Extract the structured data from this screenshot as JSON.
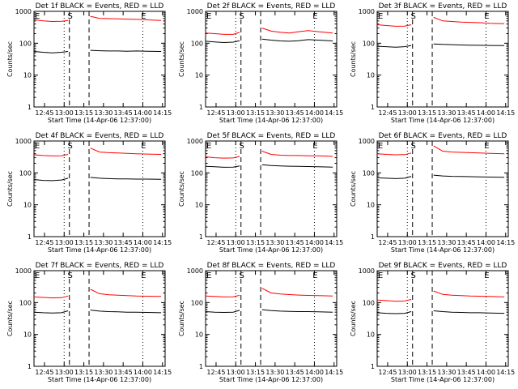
{
  "chart_data": [
    {
      "type": "line",
      "title": "Det 1f BLACK = Events, RED = LLD",
      "xlabel": "Start Time (14-Apr-06 12:37:00)",
      "ylabel": "Counts/sec",
      "y_scale": "log",
      "ylim": [
        1,
        1000
      ],
      "x_tick_labels": [
        "12:45",
        "13:00",
        "13:15",
        "13:30",
        "13:45",
        "14:00",
        "14:15"
      ],
      "y_tick_labels": [
        "1",
        "10",
        "100",
        "1000"
      ],
      "markers": [
        {
          "label": "E",
          "x": "12:37"
        },
        {
          "label": "S",
          "x": "13:04"
        },
        {
          "label": "E",
          "x": "14:00"
        }
      ],
      "dashed_lines": [
        "13:04",
        "13:19"
      ],
      "series": [
        {
          "color": "#ff0000",
          "values": [
            550,
            500,
            480,
            490,
            520,
            "gap",
            700,
            600,
            590,
            580,
            570,
            560,
            540,
            520
          ]
        },
        {
          "color": "#000000",
          "values": [
            55,
            52,
            50,
            52,
            55,
            "gap",
            60,
            58,
            57,
            57,
            56,
            57,
            56,
            55
          ]
        }
      ]
    },
    {
      "type": "line",
      "title": "Det 2f BLACK = Events, RED = LLD",
      "xlabel": "Start Time (14-Apr-06 12:37:00)",
      "ylabel": "Counts/sec",
      "y_scale": "log",
      "ylim": [
        1,
        1000
      ],
      "x_tick_labels": [
        "12:45",
        "13:00",
        "13:15",
        "13:30",
        "13:45",
        "14:00",
        "14:15"
      ],
      "y_tick_labels": [
        "1",
        "10",
        "100",
        "1000"
      ],
      "markers": [
        {
          "label": "E",
          "x": "12:37"
        },
        {
          "label": "S",
          "x": "13:04"
        },
        {
          "label": "E",
          "x": "14:00"
        }
      ],
      "dashed_lines": [
        "13:04",
        "13:19"
      ],
      "series": [
        {
          "color": "#ff0000",
          "values": [
            210,
            200,
            190,
            190,
            220,
            "gap",
            300,
            240,
            220,
            210,
            230,
            250,
            230,
            210
          ]
        },
        {
          "color": "#000000",
          "values": [
            115,
            110,
            105,
            108,
            120,
            "gap",
            135,
            125,
            118,
            115,
            120,
            130,
            125,
            118
          ]
        }
      ]
    },
    {
      "type": "line",
      "title": "Det 3f BLACK = Events, RED = LLD",
      "xlabel": "Start Time (14-Apr-06 12:37:00)",
      "ylabel": "Counts/sec",
      "y_scale": "log",
      "ylim": [
        1,
        1000
      ],
      "x_tick_labels": [
        "12:45",
        "13:00",
        "13:15",
        "13:30",
        "13:45",
        "14:00",
        "14:15"
      ],
      "y_tick_labels": [
        "1",
        "10",
        "100",
        "1000"
      ],
      "markers": [
        {
          "label": "E",
          "x": "12:37"
        },
        {
          "label": "S",
          "x": "13:04"
        },
        {
          "label": "E",
          "x": "14:00"
        }
      ],
      "dashed_lines": [
        "13:04",
        "13:19"
      ],
      "series": [
        {
          "color": "#ff0000",
          "values": [
            380,
            360,
            340,
            345,
            380,
            "gap",
            650,
            500,
            480,
            460,
            450,
            440,
            420,
            410
          ]
        },
        {
          "color": "#000000",
          "values": [
            80,
            78,
            75,
            78,
            85,
            "gap",
            95,
            92,
            90,
            88,
            87,
            86,
            85,
            84
          ]
        }
      ]
    },
    {
      "type": "line",
      "title": "Det 4f BLACK = Events, RED = LLD",
      "xlabel": "Start Time (14-Apr-06 12:37:00)",
      "ylabel": "Counts/sec",
      "y_scale": "log",
      "ylim": [
        1,
        1000
      ],
      "x_tick_labels": [
        "12:45",
        "13:00",
        "13:15",
        "13:30",
        "13:45",
        "14:00",
        "14:15"
      ],
      "y_tick_labels": [
        "1",
        "10",
        "100",
        "1000"
      ],
      "markers": [
        {
          "label": "E",
          "x": "12:37"
        },
        {
          "label": "S",
          "x": "13:04"
        },
        {
          "label": "E",
          "x": "14:00"
        }
      ],
      "dashed_lines": [
        "13:04",
        "13:19"
      ],
      "series": [
        {
          "color": "#ff0000",
          "values": [
            370,
            350,
            340,
            345,
            380,
            "gap",
            600,
            450,
            430,
            420,
            410,
            400,
            390,
            380
          ]
        },
        {
          "color": "#000000",
          "values": [
            62,
            58,
            57,
            60,
            68,
            "gap",
            72,
            68,
            66,
            65,
            65,
            64,
            64,
            63
          ]
        }
      ]
    },
    {
      "type": "line",
      "title": "Det 5f BLACK = Events, RED = LLD",
      "xlabel": "Start Time (14-Apr-06 12:37:00)",
      "ylabel": "Counts/sec",
      "y_scale": "log",
      "ylim": [
        1,
        1000
      ],
      "x_tick_labels": [
        "12:45",
        "13:00",
        "13:15",
        "13:30",
        "13:45",
        "14:00",
        "14:15"
      ],
      "y_tick_labels": [
        "1",
        "10",
        "100",
        "1000"
      ],
      "markers": [
        {
          "label": "E",
          "x": "12:37"
        },
        {
          "label": "S",
          "x": "13:04"
        },
        {
          "label": "E",
          "x": "14:00"
        }
      ],
      "dashed_lines": [
        "13:04",
        "13:19"
      ],
      "series": [
        {
          "color": "#ff0000",
          "values": [
            320,
            300,
            290,
            295,
            330,
            "gap",
            480,
            380,
            360,
            350,
            350,
            345,
            340,
            330
          ]
        },
        {
          "color": "#000000",
          "values": [
            160,
            155,
            150,
            152,
            165,
            "gap",
            180,
            170,
            165,
            162,
            160,
            158,
            155,
            152
          ]
        }
      ]
    },
    {
      "type": "line",
      "title": "Det 6f BLACK = Events, RED = LLD",
      "xlabel": "Start Time (14-Apr-06 12:37:00)",
      "ylabel": "Counts/sec",
      "y_scale": "log",
      "ylim": [
        1,
        1000
      ],
      "x_tick_labels": [
        "12:45",
        "13:00",
        "13:15",
        "13:30",
        "13:45",
        "14:00",
        "14:15"
      ],
      "y_tick_labels": [
        "1",
        "10",
        "100",
        "1000"
      ],
      "markers": [
        {
          "label": "E",
          "x": "12:37"
        },
        {
          "label": "S",
          "x": "13:04"
        },
        {
          "label": "E",
          "x": "14:00"
        }
      ],
      "dashed_lines": [
        "13:04",
        "13:19"
      ],
      "series": [
        {
          "color": "#ff0000",
          "values": [
            400,
            380,
            370,
            375,
            420,
            "gap",
            700,
            480,
            450,
            440,
            430,
            420,
            410,
            400
          ]
        },
        {
          "color": "#000000",
          "values": [
            70,
            68,
            66,
            68,
            78,
            "gap",
            85,
            80,
            78,
            77,
            76,
            75,
            74,
            73
          ]
        }
      ]
    },
    {
      "type": "line",
      "title": "Det 7f BLACK = Events, RED = LLD",
      "xlabel": "Start Time (14-Apr-06 12:37:00)",
      "ylabel": "Counts/sec",
      "y_scale": "log",
      "ylim": [
        1,
        1000
      ],
      "x_tick_labels": [
        "12:45",
        "13:00",
        "13:15",
        "13:30",
        "13:45",
        "14:00",
        "14:15"
      ],
      "y_tick_labels": [
        "1",
        "10",
        "100",
        "1000"
      ],
      "markers": [
        {
          "label": "E",
          "x": "12:37"
        },
        {
          "label": "S",
          "x": "13:04"
        },
        {
          "label": "E",
          "x": "14:00"
        }
      ],
      "dashed_lines": [
        "13:04",
        "13:19"
      ],
      "series": [
        {
          "color": "#ff0000",
          "values": [
            150,
            145,
            140,
            142,
            160,
            "gap",
            260,
            190,
            175,
            170,
            165,
            160,
            158,
            155
          ]
        },
        {
          "color": "#000000",
          "values": [
            50,
            48,
            47,
            48,
            55,
            "gap",
            58,
            54,
            52,
            51,
            50,
            50,
            49,
            48
          ]
        }
      ]
    },
    {
      "type": "line",
      "title": "Det 8f BLACK = Events, RED = LLD",
      "xlabel": "Start Time (14-Apr-06 12:37:00)",
      "ylabel": "Counts/sec",
      "y_scale": "log",
      "ylim": [
        1,
        1000
      ],
      "x_tick_labels": [
        "12:45",
        "13:00",
        "13:15",
        "13:30",
        "13:45",
        "14:00",
        "14:15"
      ],
      "y_tick_labels": [
        "1",
        "10",
        "100",
        "1000"
      ],
      "markers": [
        {
          "label": "E",
          "x": "12:37"
        },
        {
          "label": "S",
          "x": "13:04"
        },
        {
          "label": "E",
          "x": "14:00"
        }
      ],
      "dashed_lines": [
        "13:04",
        "13:19"
      ],
      "series": [
        {
          "color": "#ff0000",
          "values": [
            160,
            155,
            150,
            152,
            170,
            "gap",
            280,
            200,
            185,
            178,
            172,
            168,
            165,
            160
          ]
        },
        {
          "color": "#000000",
          "values": [
            52,
            50,
            49,
            50,
            57,
            "gap",
            60,
            56,
            54,
            53,
            52,
            52,
            51,
            50
          ]
        }
      ]
    },
    {
      "type": "line",
      "title": "Det 9f BLACK = Events, RED = LLD",
      "xlabel": "Start Time (14-Apr-06 12:37:00)",
      "ylabel": "Counts/sec",
      "y_scale": "log",
      "ylim": [
        1,
        1000
      ],
      "x_tick_labels": [
        "12:45",
        "13:00",
        "13:15",
        "13:30",
        "13:45",
        "14:00",
        "14:15"
      ],
      "y_tick_labels": [
        "1",
        "10",
        "100",
        "1000"
      ],
      "markers": [
        {
          "label": "E",
          "x": "12:37"
        },
        {
          "label": "S",
          "x": "13:04"
        },
        {
          "label": "E",
          "x": "14:00"
        }
      ],
      "dashed_lines": [
        "13:04",
        "13:19"
      ],
      "series": [
        {
          "color": "#ff0000",
          "values": [
            120,
            115,
            110,
            112,
            125,
            "gap",
            230,
            180,
            170,
            165,
            160,
            158,
            155,
            150
          ]
        },
        {
          "color": "#000000",
          "values": [
            48,
            46,
            45,
            46,
            52,
            "gap",
            55,
            52,
            50,
            49,
            48,
            48,
            47,
            46
          ]
        }
      ]
    }
  ]
}
